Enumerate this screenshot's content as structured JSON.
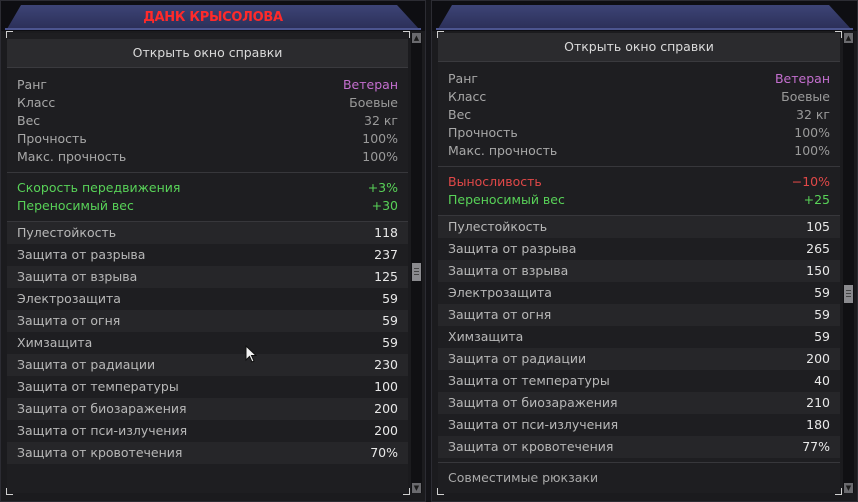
{
  "left": {
    "title": "ДАНК КРЫСОЛОВА",
    "help_button": "Открыть окно справки",
    "info": [
      {
        "label": "Ранг",
        "value": "Ветеран"
      },
      {
        "label": "Класс",
        "value": "Боевые"
      },
      {
        "label": "Вес",
        "value": "32 кг"
      },
      {
        "label": "Прочность",
        "value": "100%"
      },
      {
        "label": "Макс. прочность",
        "value": "100%"
      }
    ],
    "bonuses": [
      {
        "label": "Скорость передвижения",
        "value": "+3%"
      },
      {
        "label": "Переносимый вес",
        "value": "+30"
      }
    ],
    "stats": [
      {
        "label": "Пулестойкость",
        "value": "118"
      },
      {
        "label": "Защита от разрыва",
        "value": "237"
      },
      {
        "label": "Защита от взрыва",
        "value": "125"
      },
      {
        "label": "Электрозащита",
        "value": "59"
      },
      {
        "label": "Защита от огня",
        "value": "59"
      },
      {
        "label": "Химзащита",
        "value": "59"
      },
      {
        "label": "Защита от радиации",
        "value": "230"
      },
      {
        "label": "Защита от температуры",
        "value": "100"
      },
      {
        "label": "Защита от биозаражения",
        "value": "200"
      },
      {
        "label": "Защита от пси-излучения",
        "value": "200"
      },
      {
        "label": "Защита от кровотечения",
        "value": "70%"
      }
    ]
  },
  "right": {
    "help_button": "Открыть окно справки",
    "info": [
      {
        "label": "Ранг",
        "value": "Ветеран"
      },
      {
        "label": "Класс",
        "value": "Боевые"
      },
      {
        "label": "Вес",
        "value": "32 кг"
      },
      {
        "label": "Прочность",
        "value": "100%"
      },
      {
        "label": "Макс. прочность",
        "value": "100%"
      }
    ],
    "bonuses": [
      {
        "label": "Выносливость",
        "value": "−10%"
      },
      {
        "label": "Переносимый вес",
        "value": "+25"
      }
    ],
    "stats": [
      {
        "label": "Пулестойкость",
        "value": "105"
      },
      {
        "label": "Защита от разрыва",
        "value": "265"
      },
      {
        "label": "Защита от взрыва",
        "value": "150"
      },
      {
        "label": "Электрозащита",
        "value": "59"
      },
      {
        "label": "Защита от огня",
        "value": "59"
      },
      {
        "label": "Химзащита",
        "value": "59"
      },
      {
        "label": "Защита от радиации",
        "value": "200"
      },
      {
        "label": "Защита от температуры",
        "value": "40"
      },
      {
        "label": "Защита от биозаражения",
        "value": "210"
      },
      {
        "label": "Защита от пси-излучения",
        "value": "180"
      },
      {
        "label": "Защита от кровотечения",
        "value": "77%"
      }
    ],
    "footer": "Совместимые рюкзаки"
  },
  "colors": {
    "rank": "#c46fcf",
    "positive": "#58d258",
    "negative": "#e04848",
    "title": "#ff2a2a",
    "header_bar": "#3d4476"
  }
}
